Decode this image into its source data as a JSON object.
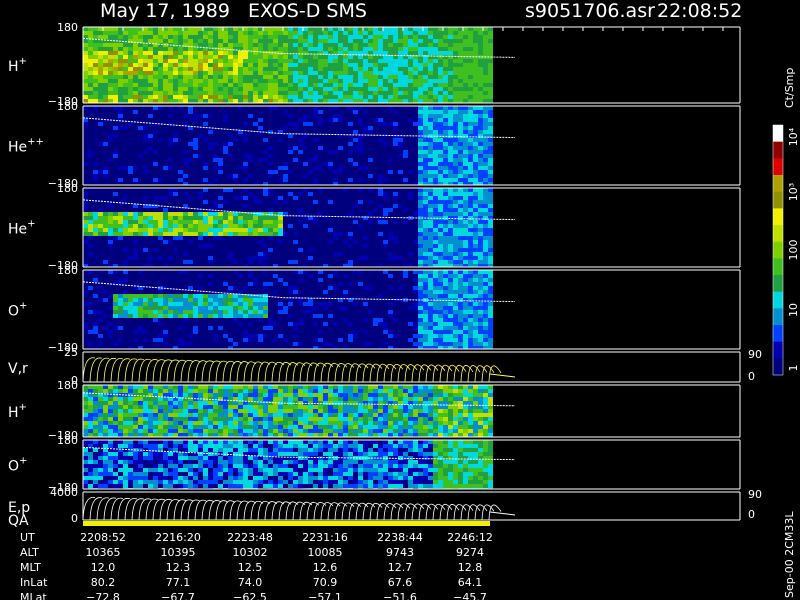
{
  "header": {
    "title": "May 17, 1989   EXOS-D SMS",
    "file": "s9051706.asr",
    "time": "22:08:52"
  },
  "panels": [
    {
      "label": "H",
      "charge": "+",
      "top": "180",
      "bottom": "−180"
    },
    {
      "label": "He",
      "charge": "++",
      "top": "180",
      "bottom": "−180"
    },
    {
      "label": "He",
      "charge": "+",
      "top": "180",
      "bottom": "−180"
    },
    {
      "label": "O",
      "charge": "+",
      "top": "180",
      "bottom": "−180"
    },
    {
      "label": "V,r",
      "charge": "",
      "top": "25",
      "bottom": "0",
      "right_top": "90",
      "right_bottom": "0"
    },
    {
      "label": "H",
      "charge": "+",
      "top": "180",
      "bottom": "−180"
    },
    {
      "label": "O",
      "charge": "+",
      "top": "180",
      "bottom": "−180"
    },
    {
      "label": "E,p",
      "charge": "",
      "top": "4000",
      "bottom": "0",
      "right_top": "90",
      "right_bottom": "0"
    }
  ],
  "qa_label": "QA",
  "colorbar": {
    "unit": "Ct/Smp",
    "labels": [
      "10⁴",
      "10³",
      "100",
      "10",
      "1"
    ]
  },
  "footer_note": "Sep-00 2CM33L",
  "table": {
    "rows": [
      {
        "label": "UT",
        "values": [
          "2208:52",
          "2216:20",
          "2223:48",
          "2231:16",
          "2238:44",
          "2246:12"
        ]
      },
      {
        "label": "ALT",
        "values": [
          "10365",
          "10395",
          "10302",
          "10085",
          "9743",
          "9274"
        ]
      },
      {
        "label": "MLT",
        "values": [
          "12.0",
          "12.3",
          "12.5",
          "12.6",
          "12.7",
          "12.8"
        ]
      },
      {
        "label": "InLat",
        "values": [
          "80.2",
          "77.1",
          "74.0",
          "70.9",
          "67.6",
          "64.1"
        ]
      },
      {
        "label": "MLat",
        "values": [
          "−72.8",
          "−67.7",
          "−62.5",
          "−57.1",
          "−51.6",
          "−45.7"
        ]
      }
    ]
  }
}
